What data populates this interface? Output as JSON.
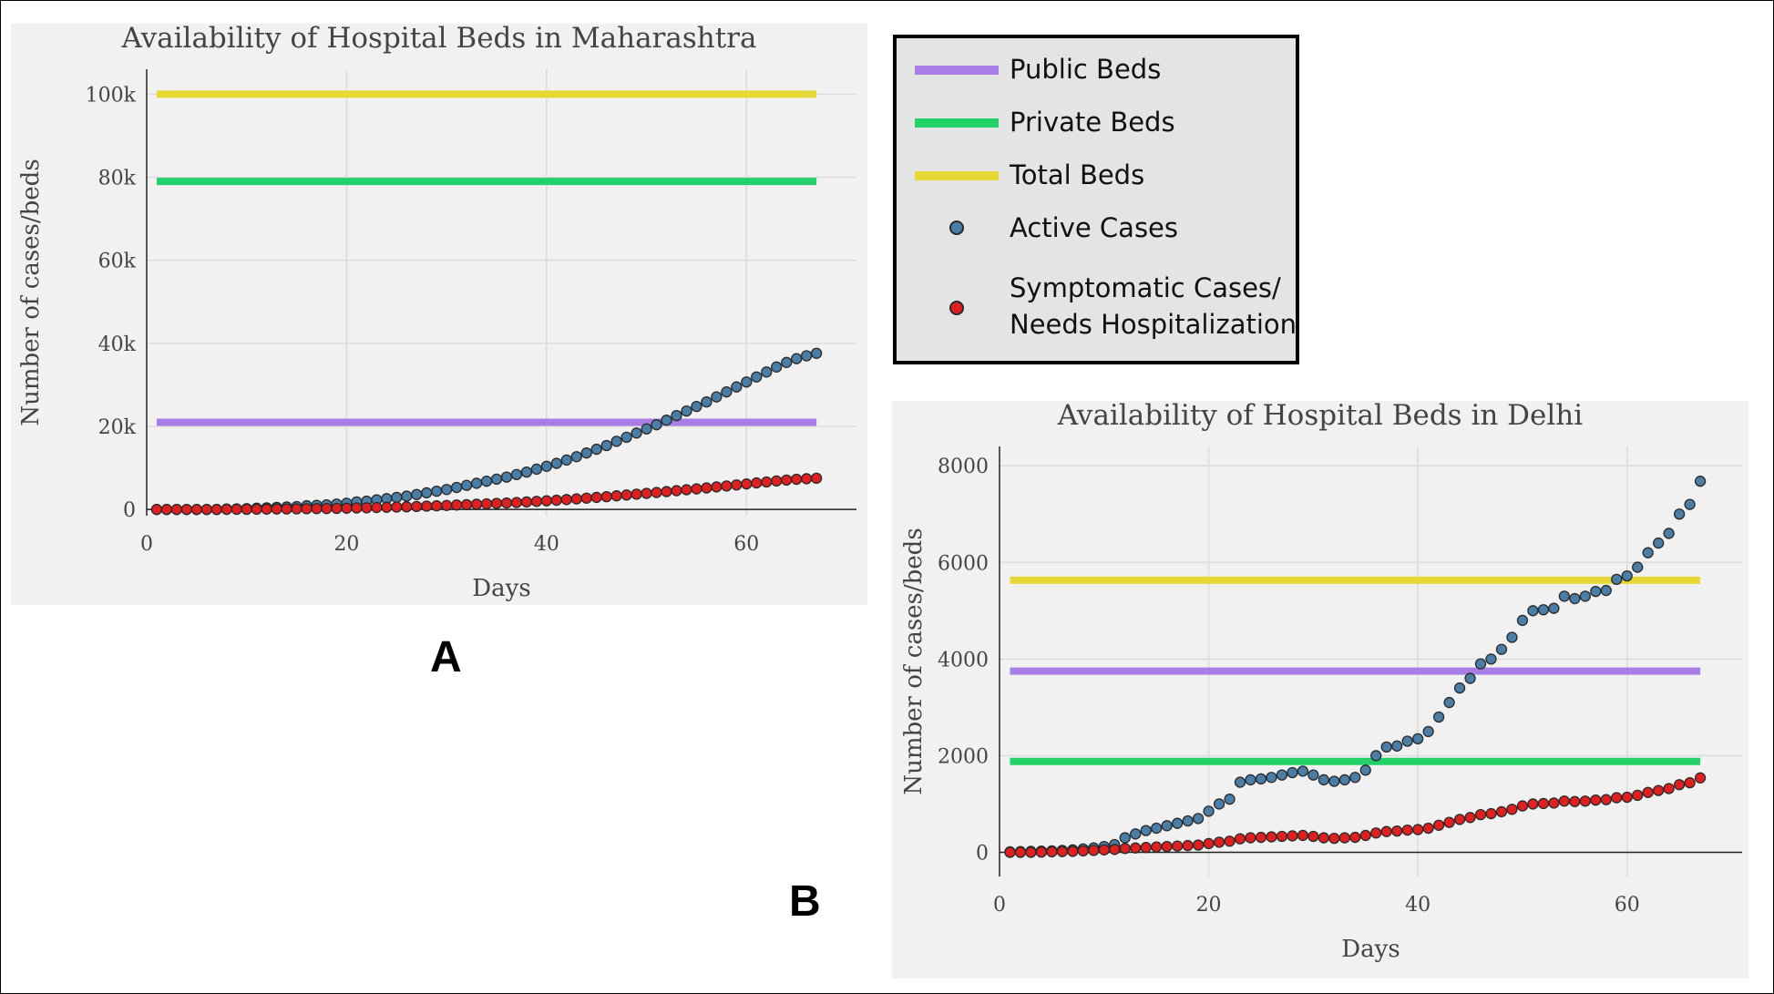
{
  "panels": {
    "a": "A",
    "b": "B"
  },
  "legend": {
    "items": [
      {
        "label": "Public Beds",
        "kind": "line",
        "color": "#a87ee6"
      },
      {
        "label": "Private Beds",
        "kind": "line",
        "color": "#22d168"
      },
      {
        "label": "Total Beds",
        "kind": "line",
        "color": "#e8d836"
      },
      {
        "label": "Active Cases",
        "kind": "marker",
        "color": "#4a7ea6"
      },
      {
        "label": "Symptomatic Cases/",
        "label2": "Needs Hospitalization",
        "kind": "marker",
        "color": "#e02020"
      }
    ]
  },
  "chart_data": [
    {
      "type": "scatter",
      "title": "Availability of Hospital Beds in Maharashtra",
      "xlabel": "Days",
      "ylabel": "Number of cases/beds",
      "xlim": [
        0,
        71
      ],
      "ylim": [
        -1500,
        106000
      ],
      "xticks": [
        0,
        20,
        40,
        60
      ],
      "xtick_labels": [
        "0",
        "20",
        "40",
        "60"
      ],
      "yticks": [
        0,
        20000,
        40000,
        60000,
        80000,
        100000
      ],
      "ytick_labels": [
        "0",
        "20k",
        "40k",
        "60k",
        "80k",
        "100k"
      ],
      "grid": true,
      "hlines": [
        {
          "name": "Total Beds",
          "y": 100000,
          "x": [
            1,
            67
          ],
          "color": "#e8d836"
        },
        {
          "name": "Private Beds",
          "y": 79000,
          "x": [
            1,
            67
          ],
          "color": "#22d168"
        },
        {
          "name": "Public Beds",
          "y": 21000,
          "x": [
            1,
            67
          ],
          "color": "#a87ee6"
        }
      ],
      "series": [
        {
          "name": "Active Cases",
          "color": "#4a7ea6",
          "x": [
            1,
            2,
            3,
            4,
            5,
            6,
            7,
            8,
            9,
            10,
            11,
            12,
            13,
            14,
            15,
            16,
            17,
            18,
            19,
            20,
            21,
            22,
            23,
            24,
            25,
            26,
            27,
            28,
            29,
            30,
            31,
            32,
            33,
            34,
            35,
            36,
            37,
            38,
            39,
            40,
            41,
            42,
            43,
            44,
            45,
            46,
            47,
            48,
            49,
            50,
            51,
            52,
            53,
            54,
            55,
            56,
            57,
            58,
            59,
            60,
            61,
            62,
            63,
            64,
            65,
            66,
            67
          ],
          "y": [
            0,
            0,
            0,
            0,
            0,
            0,
            0,
            100,
            150,
            200,
            300,
            400,
            500,
            600,
            700,
            900,
            1000,
            1100,
            1300,
            1500,
            1800,
            2000,
            2300,
            2600,
            2900,
            3200,
            3600,
            4000,
            4400,
            4800,
            5300,
            5800,
            6300,
            6800,
            7300,
            7800,
            8400,
            9000,
            9700,
            10400,
            11100,
            11900,
            12700,
            13600,
            14500,
            15400,
            16400,
            17400,
            18400,
            19400,
            20400,
            21500,
            22600,
            23700,
            24800,
            25900,
            27100,
            28300,
            29500,
            30700,
            31900,
            33100,
            34300,
            35400,
            36300,
            37000,
            37600
          ]
        },
        {
          "name": "Symptomatic Cases/ Needs Hospitalization",
          "color": "#e02020",
          "x": [
            1,
            2,
            3,
            4,
            5,
            6,
            7,
            8,
            9,
            10,
            11,
            12,
            13,
            14,
            15,
            16,
            17,
            18,
            19,
            20,
            21,
            22,
            23,
            24,
            25,
            26,
            27,
            28,
            29,
            30,
            31,
            32,
            33,
            34,
            35,
            36,
            37,
            38,
            39,
            40,
            41,
            42,
            43,
            44,
            45,
            46,
            47,
            48,
            49,
            50,
            51,
            52,
            53,
            54,
            55,
            56,
            57,
            58,
            59,
            60,
            61,
            62,
            63,
            64,
            65,
            66,
            67
          ],
          "y": [
            0,
            0,
            0,
            0,
            0,
            0,
            0,
            20,
            30,
            40,
            60,
            80,
            100,
            120,
            140,
            180,
            200,
            220,
            260,
            300,
            360,
            400,
            460,
            520,
            580,
            640,
            720,
            800,
            880,
            960,
            1060,
            1160,
            1260,
            1360,
            1460,
            1560,
            1680,
            1800,
            1940,
            2080,
            2220,
            2380,
            2540,
            2720,
            2900,
            3080,
            3280,
            3480,
            3680,
            3880,
            4080,
            4300,
            4520,
            4740,
            4960,
            5180,
            5420,
            5660,
            5900,
            6140,
            6380,
            6620,
            6860,
            7080,
            7260,
            7400,
            7520
          ]
        }
      ]
    },
    {
      "type": "scatter",
      "title": "Availability of Hospital Beds in Delhi",
      "xlabel": "Days",
      "ylabel": "Number of cases/beds",
      "xlim": [
        0,
        71
      ],
      "ylim": [
        -500,
        8400
      ],
      "xticks": [
        0,
        20,
        40,
        60
      ],
      "xtick_labels": [
        "0",
        "20",
        "40",
        "60"
      ],
      "yticks": [
        0,
        2000,
        4000,
        6000,
        8000
      ],
      "ytick_labels": [
        "0",
        "2000",
        "4000",
        "6000",
        "8000"
      ],
      "grid": true,
      "hlines": [
        {
          "name": "Total Beds",
          "y": 5630,
          "x": [
            1,
            67
          ],
          "color": "#e8d836"
        },
        {
          "name": "Public Beds",
          "y": 3750,
          "x": [
            1,
            67
          ],
          "color": "#a87ee6"
        },
        {
          "name": "Private Beds",
          "y": 1880,
          "x": [
            1,
            67
          ],
          "color": "#22d168"
        }
      ],
      "series": [
        {
          "name": "Active Cases",
          "color": "#4a7ea6",
          "x": [
            1,
            2,
            3,
            4,
            5,
            6,
            7,
            8,
            9,
            10,
            11,
            12,
            13,
            14,
            15,
            16,
            17,
            18,
            19,
            20,
            21,
            22,
            23,
            24,
            25,
            26,
            27,
            28,
            29,
            30,
            31,
            32,
            33,
            34,
            35,
            36,
            37,
            38,
            39,
            40,
            41,
            42,
            43,
            44,
            45,
            46,
            47,
            48,
            49,
            50,
            51,
            52,
            53,
            54,
            55,
            56,
            57,
            58,
            59,
            60,
            61,
            62,
            63,
            64,
            65,
            66,
            67
          ],
          "y": [
            10,
            15,
            20,
            25,
            30,
            40,
            50,
            70,
            90,
            120,
            160,
            300,
            380,
            450,
            500,
            550,
            600,
            650,
            700,
            850,
            1000,
            1100,
            1450,
            1500,
            1520,
            1550,
            1600,
            1650,
            1680,
            1600,
            1500,
            1470,
            1500,
            1550,
            1700,
            2000,
            2180,
            2200,
            2300,
            2350,
            2500,
            2800,
            3100,
            3400,
            3600,
            3900,
            4000,
            4200,
            4450,
            4800,
            5000,
            5020,
            5050,
            5300,
            5250,
            5300,
            5400,
            5420,
            5650,
            5720,
            5900,
            6200,
            6400,
            6600,
            7000,
            7200,
            7680
          ]
        },
        {
          "name": "Symptomatic Cases/ Needs Hospitalization",
          "color": "#e02020",
          "x": [
            1,
            2,
            3,
            4,
            5,
            6,
            7,
            8,
            9,
            10,
            11,
            12,
            13,
            14,
            15,
            16,
            17,
            18,
            19,
            20,
            21,
            22,
            23,
            24,
            25,
            26,
            27,
            28,
            29,
            30,
            31,
            32,
            33,
            34,
            35,
            36,
            37,
            38,
            39,
            40,
            41,
            42,
            43,
            44,
            45,
            46,
            47,
            48,
            49,
            50,
            51,
            52,
            53,
            54,
            55,
            56,
            57,
            58,
            59,
            60,
            61,
            62,
            63,
            64,
            65,
            66,
            67
          ],
          "y": [
            0,
            0,
            0,
            5,
            10,
            15,
            20,
            30,
            40,
            50,
            60,
            80,
            90,
            100,
            110,
            120,
            130,
            140,
            150,
            180,
            210,
            230,
            280,
            300,
            310,
            320,
            330,
            340,
            350,
            330,
            300,
            290,
            300,
            310,
            350,
            400,
            430,
            440,
            460,
            470,
            500,
            560,
            620,
            680,
            720,
            780,
            800,
            840,
            890,
            960,
            1000,
            1010,
            1020,
            1060,
            1050,
            1060,
            1080,
            1090,
            1130,
            1140,
            1180,
            1240,
            1280,
            1320,
            1400,
            1440,
            1540
          ]
        }
      ]
    }
  ]
}
